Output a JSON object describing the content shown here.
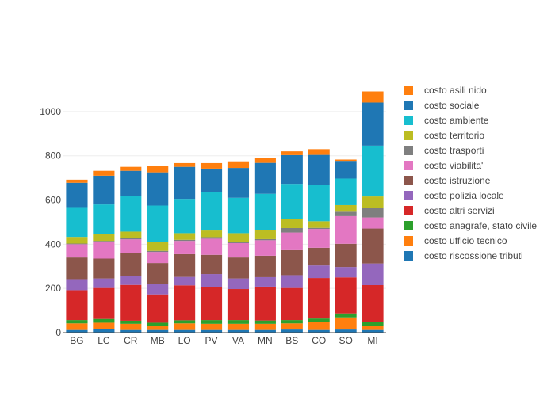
{
  "chart_data": {
    "type": "bar",
    "stacked": true,
    "title": "",
    "xlabel": "",
    "ylabel": "",
    "ylim": [
      0,
      1100
    ],
    "yticks": [
      0,
      200,
      400,
      600,
      800,
      1000
    ],
    "grid": true,
    "legend_position": "right",
    "categories": [
      "BG",
      "LC",
      "CR",
      "MB",
      "LO",
      "PV",
      "VA",
      "MN",
      "BS",
      "CO",
      "SO",
      "MI"
    ],
    "series": [
      {
        "name": "costo riscossione tributi",
        "color": "#1f77b4",
        "values": [
          12,
          15,
          12,
          12,
          12,
          12,
          12,
          12,
          14,
          12,
          14,
          12
        ]
      },
      {
        "name": "costo ufficio tecnico",
        "color": "#ff7f0e",
        "values": [
          30,
          30,
          28,
          20,
          30,
          28,
          28,
          28,
          28,
          35,
          55,
          20
        ]
      },
      {
        "name": "costo anagrafe, stato civile",
        "color": "#2ca02c",
        "values": [
          15,
          17,
          14,
          13,
          14,
          17,
          17,
          15,
          15,
          17,
          18,
          16
        ]
      },
      {
        "name": "costo altri servizi",
        "color": "#d62728",
        "values": [
          135,
          140,
          162,
          128,
          158,
          150,
          140,
          153,
          145,
          183,
          163,
          167
        ]
      },
      {
        "name": "costo polizia locale",
        "color": "#9467bd",
        "values": [
          50,
          43,
          42,
          47,
          38,
          58,
          48,
          43,
          58,
          57,
          47,
          98
        ]
      },
      {
        "name": "costo istruzione",
        "color": "#8c564b",
        "values": [
          98,
          90,
          102,
          95,
          103,
          87,
          95,
          97,
          113,
          80,
          105,
          158
        ]
      },
      {
        "name": "costo viabilita'",
        "color": "#e377c2",
        "values": [
          60,
          75,
          62,
          50,
          60,
          73,
          65,
          70,
          80,
          85,
          125,
          50
        ]
      },
      {
        "name": "costo trasporti",
        "color": "#7f7f7f",
        "values": [
          3,
          5,
          5,
          5,
          5,
          7,
          5,
          5,
          20,
          5,
          20,
          45
        ]
      },
      {
        "name": "costo territorio",
        "color": "#bcbd22",
        "values": [
          30,
          30,
          30,
          40,
          30,
          30,
          40,
          40,
          40,
          30,
          30,
          50
        ]
      },
      {
        "name": "costo ambiente",
        "color": "#17becf",
        "values": [
          135,
          135,
          160,
          165,
          155,
          175,
          160,
          165,
          160,
          165,
          120,
          230
        ]
      },
      {
        "name": "costo sociale",
        "color": "#1f77b4",
        "values": [
          110,
          130,
          115,
          150,
          145,
          105,
          135,
          140,
          130,
          135,
          80,
          195
        ]
      },
      {
        "name": "costo asili nido",
        "color": "#ff7f0e",
        "values": [
          14,
          22,
          18,
          30,
          17,
          25,
          30,
          22,
          17,
          26,
          6,
          50
        ]
      }
    ]
  }
}
